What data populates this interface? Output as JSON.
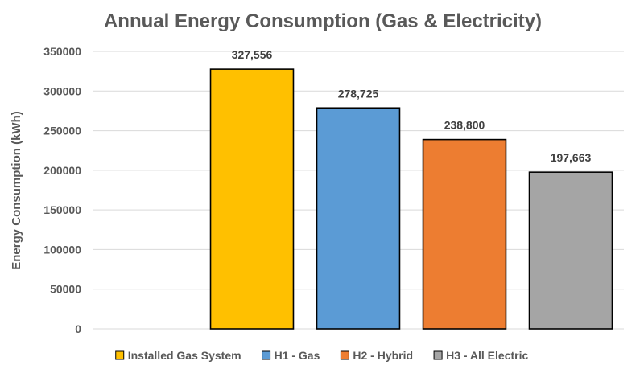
{
  "chart_data": {
    "type": "bar",
    "title": "Annual Energy Consumption (Gas & Electricity)",
    "xlabel": "",
    "ylabel": "Energy Consumption (kWh)",
    "ylim": [
      0,
      350000
    ],
    "yticks": [
      0,
      50000,
      100000,
      150000,
      200000,
      250000,
      300000,
      350000
    ],
    "ytick_labels": [
      "0",
      "50000",
      "100000",
      "150000",
      "200000",
      "250000",
      "300000",
      "350000"
    ],
    "grid": true,
    "legend_position": "bottom",
    "categories": [
      "Installed Gas System",
      "H1 - Gas",
      "H2 - Hybrid",
      "H3 - All Electric"
    ],
    "values": [
      327556,
      278725,
      238800,
      197663
    ],
    "data_labels": [
      "327,556",
      "278,725",
      "238,800",
      "197,663"
    ],
    "colors": [
      "#FFC000",
      "#5B9BD5",
      "#ED7D31",
      "#A5A5A5"
    ]
  }
}
